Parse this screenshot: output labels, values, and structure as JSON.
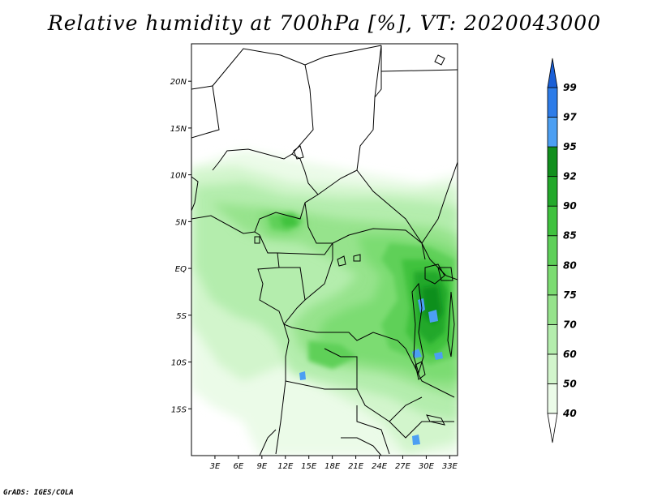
{
  "title": "Relative humidity at 700hPa [%], VT: 2020043000",
  "credit": "GrADS: IGES/COLA",
  "map": {
    "lon_range": [
      0,
      34
    ],
    "lat_range": [
      -20,
      24
    ],
    "lat_ticks": [
      {
        "label": "20N",
        "value": 20
      },
      {
        "label": "15N",
        "value": 15
      },
      {
        "label": "10N",
        "value": 10
      },
      {
        "label": "5N",
        "value": 5
      },
      {
        "label": "EQ",
        "value": 0
      },
      {
        "label": "5S",
        "value": -5
      },
      {
        "label": "10S",
        "value": -10
      },
      {
        "label": "15S",
        "value": -15
      }
    ],
    "lon_ticks": [
      {
        "label": "3E",
        "value": 3
      },
      {
        "label": "6E",
        "value": 6
      },
      {
        "label": "9E",
        "value": 9
      },
      {
        "label": "12E",
        "value": 12
      },
      {
        "label": "15E",
        "value": 15
      },
      {
        "label": "18E",
        "value": 18
      },
      {
        "label": "21E",
        "value": 21
      },
      {
        "label": "24E",
        "value": 24
      },
      {
        "label": "27E",
        "value": 27
      },
      {
        "label": "30E",
        "value": 30
      },
      {
        "label": "33E",
        "value": 33
      }
    ]
  },
  "colorbar": {
    "levels": [
      {
        "label": "40",
        "value": 40,
        "color": "#ebfbe8"
      },
      {
        "label": "50",
        "value": 50,
        "color": "#d2f5cc"
      },
      {
        "label": "60",
        "value": 60,
        "color": "#b4edad"
      },
      {
        "label": "70",
        "value": 70,
        "color": "#96e38c"
      },
      {
        "label": "75",
        "value": 75,
        "color": "#7cdc72"
      },
      {
        "label": "80",
        "value": 80,
        "color": "#5ed059"
      },
      {
        "label": "85",
        "value": 85,
        "color": "#3fc23e"
      },
      {
        "label": "90",
        "value": 90,
        "color": "#22a82a"
      },
      {
        "label": "92",
        "value": 92,
        "color": "#118f1d"
      },
      {
        "label": "95",
        "value": 95,
        "color": "#4c9ff2"
      },
      {
        "label": "97",
        "value": 97,
        "color": "#2d7ce8"
      },
      {
        "label": "99",
        "value": 99,
        "color": "#1a5fd6"
      }
    ],
    "below_color": "#ffffff",
    "above_color": "#1a5fd6"
  }
}
